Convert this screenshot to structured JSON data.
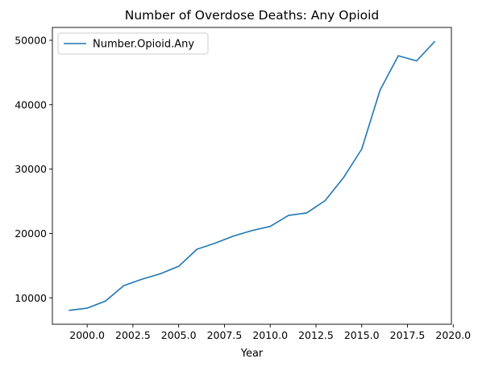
{
  "chart_data": {
    "type": "line",
    "title": "Number of Overdose Deaths: Any Opioid",
    "xlabel": "Year",
    "ylabel": "",
    "xlim": [
      1998.1,
      2019.9
    ],
    "ylim": [
      5900,
      52000
    ],
    "x_ticks": [
      2000.0,
      2002.5,
      2005.0,
      2007.5,
      2010.0,
      2012.5,
      2015.0,
      2017.5,
      2020.0
    ],
    "x_tick_labels": [
      "2000.0",
      "2002.5",
      "2005.0",
      "2007.5",
      "2010.0",
      "2012.5",
      "2015.0",
      "2017.5",
      "2020.0"
    ],
    "y_ticks": [
      10000,
      20000,
      30000,
      40000,
      50000
    ],
    "y_tick_labels": [
      "10000",
      "20000",
      "30000",
      "40000",
      "50000"
    ],
    "grid": false,
    "legend_position": "top-left",
    "series": [
      {
        "name": "Number.Opioid.Any",
        "color": "#1f77b4",
        "x": [
          1999,
          2000,
          2001,
          2002,
          2003,
          2004,
          2005,
          2006,
          2007,
          2008,
          2009,
          2010,
          2011,
          2012,
          2013,
          2014,
          2015,
          2016,
          2017,
          2018,
          2019
        ],
        "y": [
          8050,
          8400,
          9500,
          11900,
          12900,
          13750,
          14900,
          17550,
          18500,
          19600,
          20450,
          21100,
          22800,
          23200,
          25100,
          28650,
          33100,
          42250,
          47600,
          46800,
          49850
        ]
      }
    ]
  }
}
